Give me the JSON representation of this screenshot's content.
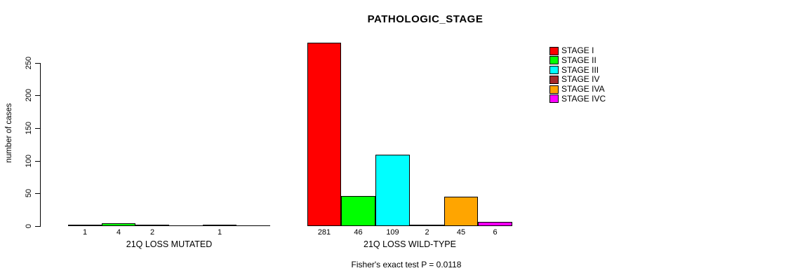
{
  "chart_data": {
    "type": "bar",
    "title": "PATHOLOGIC_STAGE",
    "ylabel": "number of cases",
    "yticks": [
      0,
      50,
      100,
      150,
      200,
      250
    ],
    "ylim": [
      0,
      281
    ],
    "grid": false,
    "legend_position": "right",
    "series_colors": [
      "#FF0000",
      "#00FF00",
      "#00FFFF",
      "#A52A2A",
      "#FFA500",
      "#FF00FF"
    ],
    "legend": [
      "STAGE I",
      "STAGE II",
      "STAGE III",
      "STAGE IV",
      "STAGE IVA",
      "STAGE IVC"
    ],
    "groups": [
      {
        "label": "21Q LOSS MUTATED",
        "values": [
          1,
          4,
          2,
          0,
          1,
          0
        ],
        "bar_labels": [
          "1",
          "4",
          "2",
          "",
          "1",
          ""
        ]
      },
      {
        "label": "21Q LOSS WILD-TYPE",
        "values": [
          281,
          46,
          109,
          2,
          45,
          6
        ],
        "bar_labels": [
          "281",
          "46",
          "109",
          "2",
          "45",
          "6"
        ]
      }
    ],
    "annotation": "Fisher's exact test P = 0.0118",
    "text_color": "#000000",
    "background_color": "#FFFFFF"
  }
}
